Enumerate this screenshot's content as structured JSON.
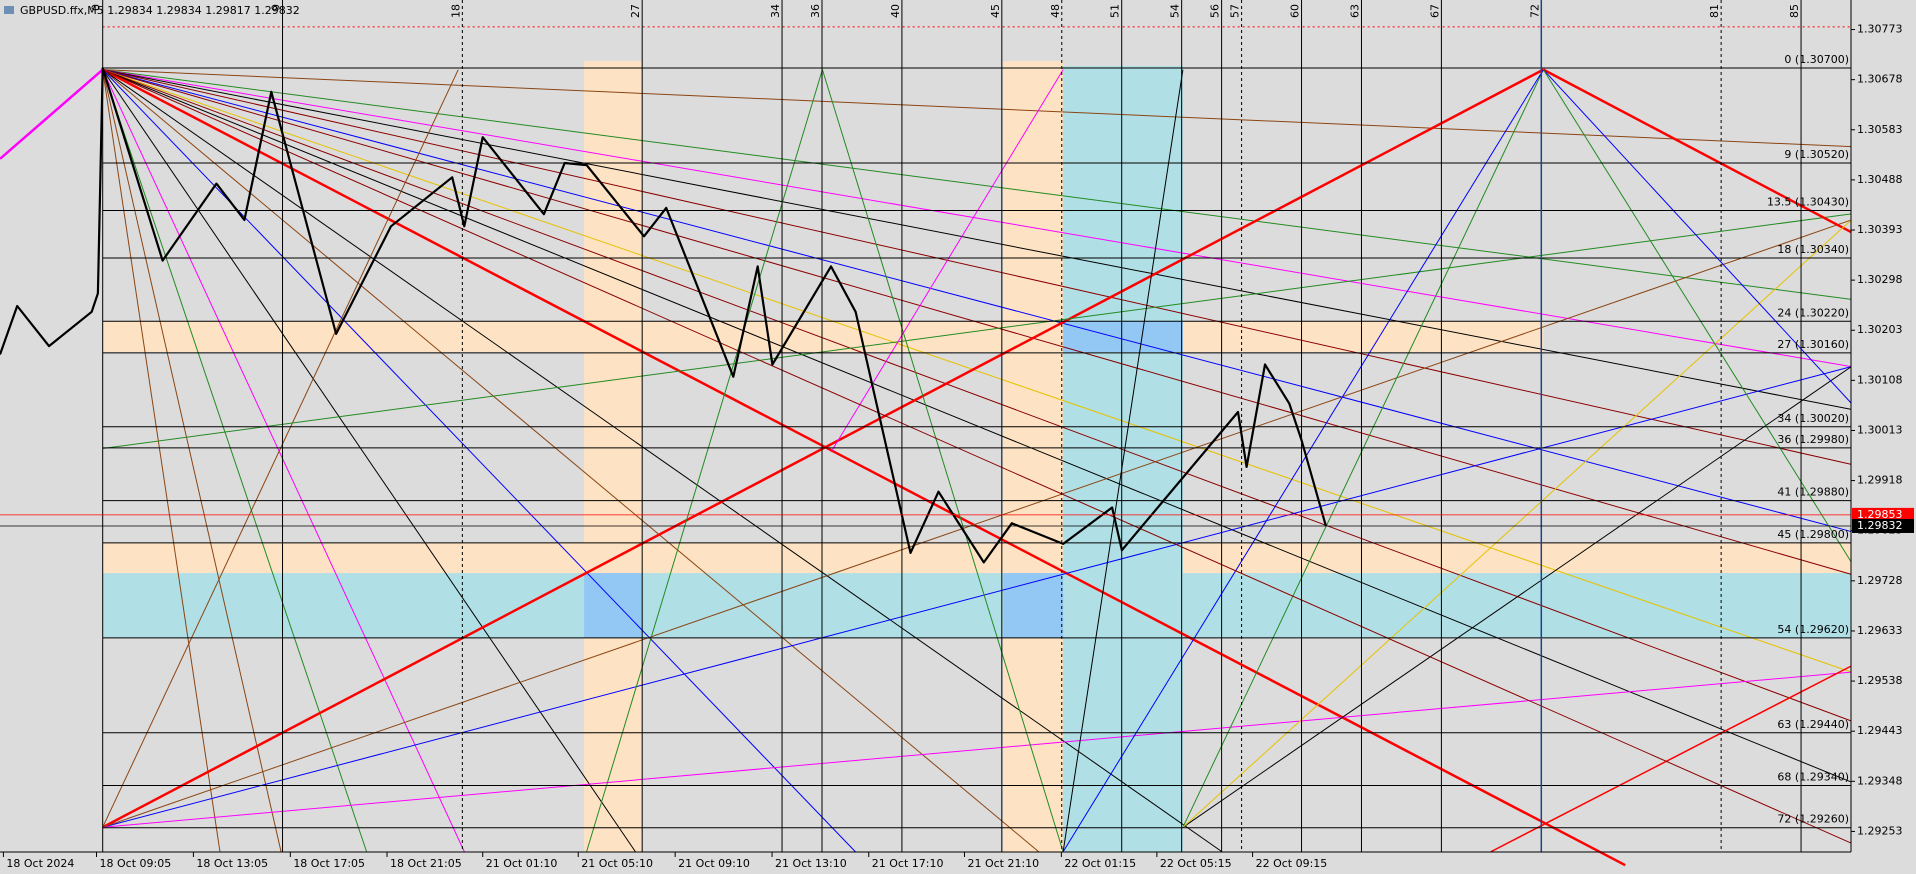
{
  "chart_data": {
    "type": "line",
    "title": "GBPUSD.ffx,M5 1.29834 1.29834 1.29817 1.29832",
    "x": [
      -5.14,
      -4.28,
      -2.69,
      -0.55,
      -0.24,
      0,
      3.0,
      5.69,
      7.09,
      8.44,
      11.68,
      14.43,
      17.49,
      18.1,
      19.02,
      22.08,
      23.12,
      24.22,
      27.09,
      28.2,
      31.56,
      32.78,
      33.52,
      36.45,
      37.68,
      40.43,
      41.83,
      44.1,
      45.5,
      48.07,
      50.52,
      51.01,
      56.82,
      57.25,
      58.17,
      59.39,
      60.0,
      61.22
    ],
    "values": [
      1.30157,
      1.30249,
      1.30173,
      1.30238,
      1.30273,
      1.307,
      1.30335,
      1.30481,
      1.30412,
      1.30655,
      1.30196,
      1.304,
      1.30493,
      1.304,
      1.30569,
      1.30423,
      1.3052,
      1.30516,
      1.30381,
      1.30435,
      1.30115,
      1.30324,
      1.30138,
      1.30324,
      1.30238,
      1.29781,
      1.29897,
      1.29763,
      1.29837,
      1.29798,
      1.29867,
      1.29786,
      1.30048,
      1.29944,
      1.30138,
      1.30064,
      1.29995,
      1.29832
    ],
    "color": "#000000",
    "xlim": [
      -5.14,
      87.5
    ],
    "ylim": [
      1.29214,
      1.30829
    ],
    "xticks": [
      {
        "value": -4.97,
        "label": "18 Oct 2024"
      },
      {
        "value": -0.31,
        "label": "18 Oct 09:05"
      },
      {
        "value": 4.54,
        "label": "18 Oct 13:05"
      },
      {
        "value": 9.39,
        "label": "18 Oct 17:05"
      },
      {
        "value": 14.23,
        "label": "18 Oct 21:05"
      },
      {
        "value": 19.02,
        "label": "21 Oct 01:10"
      },
      {
        "value": 23.8,
        "label": "21 Oct 05:10"
      },
      {
        "value": 28.65,
        "label": "21 Oct 09:10"
      },
      {
        "value": 33.5,
        "label": "21 Oct 13:10"
      },
      {
        "value": 38.34,
        "label": "21 Oct 17:10"
      },
      {
        "value": 43.13,
        "label": "21 Oct 21:10"
      },
      {
        "value": 47.98,
        "label": "22 Oct 01:15"
      },
      {
        "value": 52.76,
        "label": "22 Oct 05:15"
      },
      {
        "value": 57.55,
        "label": "22 Oct 09:15"
      }
    ],
    "yticks": [
      1.30773,
      1.30678,
      1.30583,
      1.30488,
      1.30393,
      1.30298,
      1.30203,
      1.30108,
      1.30013,
      1.29918,
      1.29823,
      1.29728,
      1.29633,
      1.29538,
      1.29443,
      1.29348,
      1.29253
    ],
    "fib_levels": [
      {
        "value": 1.307,
        "label": "0 (1.30700)"
      },
      {
        "value": 1.3052,
        "label": "9 (1.30520)"
      },
      {
        "value": 1.3043,
        "label": "13.5 (1.30430)"
      },
      {
        "value": 1.3034,
        "label": "18 (1.30340)"
      },
      {
        "value": 1.3022,
        "label": "24 (1.30220)"
      },
      {
        "value": 1.3016,
        "label": "27 (1.30160)"
      },
      {
        "value": 1.3002,
        "label": "34 (1.30020)"
      },
      {
        "value": 1.2998,
        "label": "36 (1.29980)"
      },
      {
        "value": 1.2988,
        "label": "41 (1.29880)"
      },
      {
        "value": 1.298,
        "label": "45 (1.29800)"
      },
      {
        "value": 1.2962,
        "label": "54 (1.29620)"
      },
      {
        "value": 1.2944,
        "label": "63 (1.29440)"
      },
      {
        "value": 1.2934,
        "label": "68 (1.29340)"
      },
      {
        "value": 1.2926,
        "label": "72 (1.29260)"
      }
    ],
    "time_lines": [
      0,
      9,
      18,
      27,
      34,
      36,
      40,
      45,
      48,
      51,
      54,
      56,
      57,
      60,
      63,
      67,
      72,
      81,
      85
    ],
    "price_markers": [
      {
        "value": 1.29853,
        "color": "#ff0000"
      },
      {
        "value": 1.29832,
        "color": "#000000"
      }
    ]
  }
}
